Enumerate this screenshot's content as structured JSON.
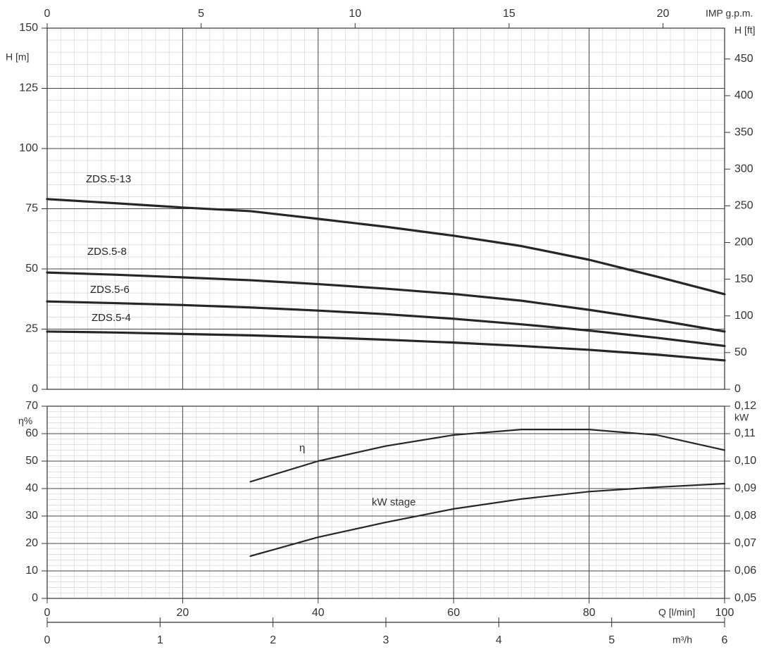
{
  "chart_data": [
    {
      "type": "line",
      "ylabel": "H [m]",
      "y2label": "H [ft]",
      "top_xlabel": "IMP g.p.m.",
      "x": [
        0,
        10,
        20,
        30,
        40,
        50,
        60,
        70,
        80,
        90,
        100
      ],
      "xlim": [
        0,
        100
      ],
      "xticks": [
        0,
        20,
        40,
        60,
        80,
        100
      ],
      "top_xlim": [
        0,
        22
      ],
      "top_xticks": [
        0,
        5,
        10,
        15,
        20
      ],
      "ylim": [
        0,
        150
      ],
      "yticks": [
        0,
        25,
        50,
        75,
        100,
        125,
        150
      ],
      "y2lim": [
        0,
        492
      ],
      "y2ticks": [
        0,
        50,
        100,
        150,
        200,
        250,
        300,
        350,
        400,
        450
      ],
      "grid": true,
      "minor_grid": {
        "x": 2,
        "y": 5
      },
      "series": [
        {
          "name": "ZDS.5-13",
          "color": "#262626",
          "values": [
            79,
            77.3,
            75.5,
            74,
            70.8,
            67.5,
            63.8,
            59.5,
            53.8,
            46.8,
            39.5
          ]
        },
        {
          "name": "ZDS.5-8",
          "color": "#262626",
          "values": [
            48.5,
            47.6,
            46.5,
            45.3,
            43.7,
            41.8,
            39.6,
            36.8,
            33,
            28.8,
            24
          ]
        },
        {
          "name": "ZDS.5-6",
          "color": "#262626",
          "values": [
            36.5,
            35.8,
            35,
            34,
            32.7,
            31.2,
            29.3,
            27,
            24.4,
            21.4,
            18
          ]
        },
        {
          "name": "ZDS.5-4",
          "color": "#262626",
          "values": [
            24,
            23.6,
            23,
            22.4,
            21.6,
            20.6,
            19.4,
            18,
            16.4,
            14.4,
            12
          ]
        }
      ]
    },
    {
      "type": "line",
      "ylabel": "η%",
      "y2label": "kW",
      "xlabel": "Q [l/min]",
      "x2label": "m³/h",
      "x": [
        0,
        10,
        20,
        30,
        40,
        50,
        60,
        70,
        80,
        90,
        100
      ],
      "xlim": [
        0,
        100
      ],
      "xticks": [
        0,
        20,
        40,
        60,
        80,
        100
      ],
      "x2lim": [
        0,
        6
      ],
      "x2ticks": [
        0,
        1,
        2,
        3,
        4,
        5,
        6
      ],
      "ylim": [
        0,
        70
      ],
      "yticks": [
        0,
        10,
        20,
        30,
        40,
        50,
        60,
        70
      ],
      "y2lim": [
        0.05,
        0.12
      ],
      "y2ticks": [
        {
          "value": 0.05,
          "label": "0,05"
        },
        {
          "value": 0.06,
          "label": "0,06"
        },
        {
          "value": 0.07,
          "label": "0,07"
        },
        {
          "value": 0.08,
          "label": "0,08"
        },
        {
          "value": 0.09,
          "label": "0,09"
        },
        {
          "value": 0.1,
          "label": "0,10"
        },
        {
          "value": 0.11,
          "label": "0,11"
        },
        {
          "value": 0.12,
          "label": "0,12"
        }
      ],
      "grid": true,
      "minor_grid": {
        "x": 2,
        "y": 2
      },
      "series": [
        {
          "name": "η",
          "color": "#262626",
          "values": [
            null,
            null,
            null,
            42.5,
            50,
            55.5,
            59.5,
            61.5,
            61.5,
            59.5,
            54
          ]
        },
        {
          "name": "kW stage",
          "color": "#262626",
          "axis": "y2",
          "values": [
            null,
            null,
            null,
            0.0654,
            0.0723,
            0.0777,
            0.0826,
            0.0862,
            0.0889,
            0.0905,
            0.0918
          ]
        }
      ]
    }
  ]
}
